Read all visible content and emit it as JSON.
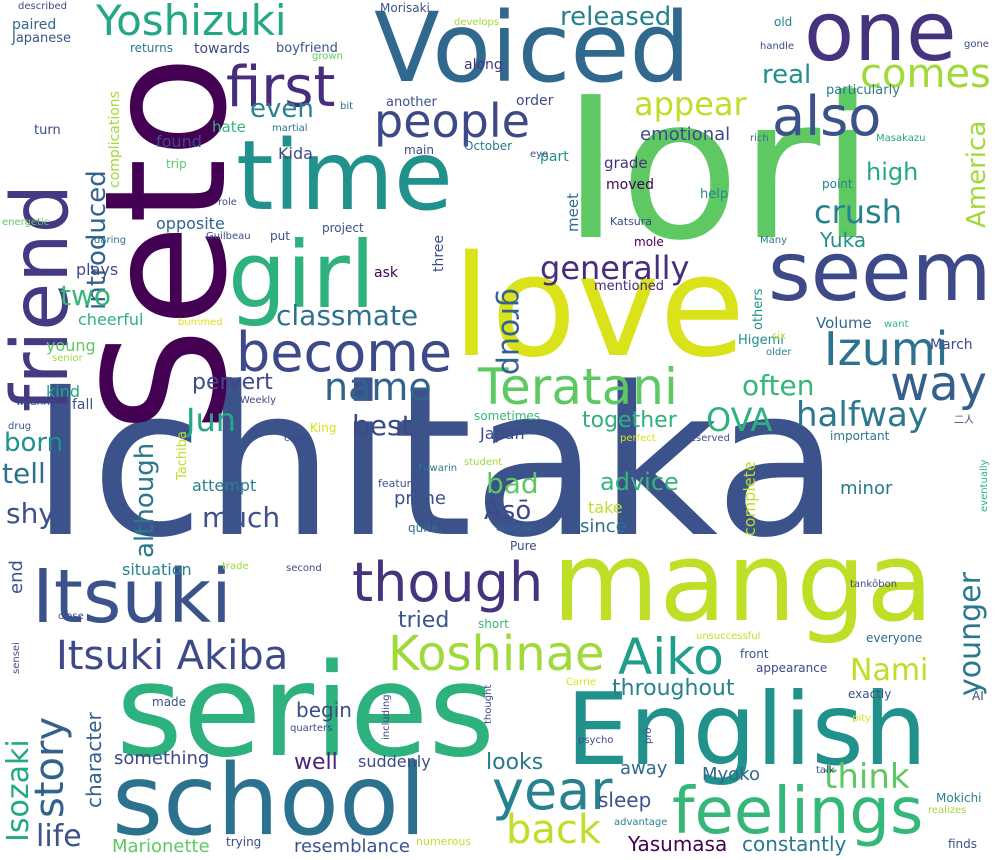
{
  "words": [
    {
      "text": "Ichitaka",
      "color": "#3b528b"
    },
    {
      "text": "Iori",
      "color": "#5ec962"
    },
    {
      "text": "Seto",
      "color": "#440154"
    },
    {
      "text": "love",
      "color": "#dae319"
    },
    {
      "text": "series",
      "color": "#2db27d"
    },
    {
      "text": "manga",
      "color": "#bddf26"
    },
    {
      "text": "school",
      "color": "#2c728e"
    },
    {
      "text": "English",
      "color": "#21918c"
    },
    {
      "text": "Voiced",
      "color": "#31688e"
    },
    {
      "text": "time",
      "color": "#21918c"
    },
    {
      "text": "girl",
      "color": "#2db27d"
    },
    {
      "text": "friend",
      "color": "#443983"
    },
    {
      "text": "seem",
      "color": "#3e4989"
    },
    {
      "text": "one",
      "color": "#46337e"
    },
    {
      "text": "Itsuki",
      "color": "#3b528b"
    },
    {
      "text": "feelings",
      "color": "#35b779"
    },
    {
      "text": "Teratani",
      "color": "#5ec962"
    },
    {
      "text": "though",
      "color": "#46337e"
    },
    {
      "text": "become",
      "color": "#3e4989"
    },
    {
      "text": "Koshinae",
      "color": "#a0da39"
    },
    {
      "text": "Aiko",
      "color": "#1f9e89"
    },
    {
      "text": "Itsuki Akiba",
      "color": "#3e4989"
    },
    {
      "text": "year",
      "color": "#26828e"
    },
    {
      "text": "back",
      "color": "#bddf26"
    },
    {
      "text": "first",
      "color": "#472d7b"
    },
    {
      "text": "also",
      "color": "#3b528b"
    },
    {
      "text": "people",
      "color": "#3e4989"
    },
    {
      "text": "way",
      "color": "#355f8d"
    },
    {
      "text": "Izumi",
      "color": "#2c728e"
    },
    {
      "text": "Yoshizuki",
      "color": "#22a884"
    },
    {
      "text": "comes",
      "color": "#a0da39"
    },
    {
      "text": "appear",
      "color": "#bddf26"
    },
    {
      "text": "name",
      "color": "#33638d"
    },
    {
      "text": "story",
      "color": "#33638d"
    },
    {
      "text": "think",
      "color": "#5ec962"
    },
    {
      "text": "halfway",
      "color": "#2a788e"
    },
    {
      "text": "generally",
      "color": "#472d7b"
    },
    {
      "text": "classmate",
      "color": "#2c728e"
    },
    {
      "text": "group",
      "color": "#33638d"
    },
    {
      "text": "introduced",
      "color": "#33638d"
    },
    {
      "text": "crush",
      "color": "#26828e"
    },
    {
      "text": "released",
      "color": "#26828e"
    },
    {
      "text": "even",
      "color": "#26828e"
    },
    {
      "text": "real",
      "color": "#21918c"
    },
    {
      "text": "Jun",
      "color": "#22a884"
    },
    {
      "text": "OVA",
      "color": "#2db27d"
    },
    {
      "text": "often",
      "color": "#35b779"
    },
    {
      "text": "best",
      "color": "#3e4989"
    },
    {
      "text": "much",
      "color": "#3b528b"
    },
    {
      "text": "Nami",
      "color": "#bddf26"
    },
    {
      "text": "younger",
      "color": "#2a788e"
    },
    {
      "text": "America",
      "color": "#a0da39"
    },
    {
      "text": "two",
      "color": "#35b779"
    },
    {
      "text": "tell",
      "color": "#2c728e"
    },
    {
      "text": "shy",
      "color": "#3b528b"
    },
    {
      "text": "born",
      "color": "#21918c"
    },
    {
      "text": "although",
      "color": "#2a788e"
    },
    {
      "text": "Isozaki",
      "color": "#22a884"
    },
    {
      "text": "life",
      "color": "#3b528b"
    },
    {
      "text": "bad",
      "color": "#5ec962"
    },
    {
      "text": "Asō",
      "color": "#3e4989"
    },
    {
      "text": "advice",
      "color": "#35b779"
    },
    {
      "text": "pervert",
      "color": "#3e4989"
    },
    {
      "text": "together",
      "color": "#2db27d"
    },
    {
      "text": "high",
      "color": "#22a884"
    },
    {
      "text": "Yuka",
      "color": "#21918c"
    },
    {
      "text": "emotional",
      "color": "#3e4989"
    },
    {
      "text": "throughout",
      "color": "#26828e"
    },
    {
      "text": "tried",
      "color": "#3b528b"
    },
    {
      "text": "sleep",
      "color": "#3b528b"
    },
    {
      "text": "Yasumasa",
      "color": "#440154"
    },
    {
      "text": "constantly",
      "color": "#2a788e"
    },
    {
      "text": "resemblance",
      "color": "#3b528b"
    },
    {
      "text": "Marionette",
      "color": "#5ec962"
    },
    {
      "text": "character",
      "color": "#355f8d"
    },
    {
      "text": "end",
      "color": "#3b528b"
    },
    {
      "text": "something",
      "color": "#3e4989"
    },
    {
      "text": "well",
      "color": "#482576"
    },
    {
      "text": "looks",
      "color": "#2a788e"
    },
    {
      "text": "begin",
      "color": "#3e4989"
    },
    {
      "text": "suddenly",
      "color": "#3e4989"
    },
    {
      "text": "away",
      "color": "#31688e"
    },
    {
      "text": "Myoko",
      "color": "#31688e"
    },
    {
      "text": "situation",
      "color": "#26828e"
    },
    {
      "text": "attempt",
      "color": "#26828e"
    },
    {
      "text": "prone",
      "color": "#3b528b"
    },
    {
      "text": "take",
      "color": "#bddf26"
    },
    {
      "text": "since",
      "color": "#2c728e"
    },
    {
      "text": "complete",
      "color": "#bddf26"
    },
    {
      "text": "minor",
      "color": "#2a788e"
    },
    {
      "text": "Japan",
      "color": "#3e4989"
    },
    {
      "text": "Volume",
      "color": "#31688e"
    },
    {
      "text": "Higemi",
      "color": "#21918c"
    },
    {
      "text": "others",
      "color": "#21918c"
    },
    {
      "text": "March",
      "color": "#3e4989"
    },
    {
      "text": "plays",
      "color": "#3e4989"
    },
    {
      "text": "cheerful",
      "color": "#2db27d"
    },
    {
      "text": "young",
      "color": "#5ec962"
    },
    {
      "text": "kind",
      "color": "#22a884"
    },
    {
      "text": "fall",
      "color": "#3b528b"
    },
    {
      "text": "opposite",
      "color": "#33638d"
    },
    {
      "text": "Kida",
      "color": "#3e4989"
    },
    {
      "text": "hate",
      "color": "#35b779"
    },
    {
      "text": "found",
      "color": "#3e4989"
    },
    {
      "text": "complications",
      "color": "#a0da39"
    },
    {
      "text": "paired",
      "color": "#31688e"
    },
    {
      "text": "Japanese",
      "color": "#3b528b"
    },
    {
      "text": "turn",
      "color": "#3e4989"
    },
    {
      "text": "mentioned",
      "color": "#482576"
    },
    {
      "text": "ask",
      "color": "#440154"
    },
    {
      "text": "three",
      "color": "#3b528b"
    },
    {
      "text": "meet",
      "color": "#2c728e"
    },
    {
      "text": "moved",
      "color": "#440154"
    },
    {
      "text": "grade",
      "color": "#46337e"
    },
    {
      "text": "part",
      "color": "#21918c"
    },
    {
      "text": "order",
      "color": "#3e4989"
    },
    {
      "text": "along",
      "color": "#46337e"
    },
    {
      "text": "towards",
      "color": "#3e4989"
    },
    {
      "text": "boyfriend",
      "color": "#3b528b"
    },
    {
      "text": "another",
      "color": "#3b528b"
    },
    {
      "text": "main",
      "color": "#3e4989"
    },
    {
      "text": "October",
      "color": "#2a788e"
    },
    {
      "text": "Morisaki",
      "color": "#3b528b"
    },
    {
      "text": "particularly",
      "color": "#2a788e"
    },
    {
      "text": "old",
      "color": "#26828e"
    },
    {
      "text": "help",
      "color": "#26828e"
    },
    {
      "text": "point",
      "color": "#26828e"
    },
    {
      "text": "mole",
      "color": "#440154"
    },
    {
      "text": "Katsura",
      "color": "#3e4989"
    },
    {
      "text": "sometimes",
      "color": "#35b779"
    },
    {
      "text": "important",
      "color": "#2a788e"
    },
    {
      "text": "featuring",
      "color": "#3b528b"
    },
    {
      "text": "quite",
      "color": "#2c728e"
    },
    {
      "text": "Pure",
      "color": "#3e4989"
    },
    {
      "text": "short",
      "color": "#35b779"
    },
    {
      "text": "front",
      "color": "#3b528b"
    },
    {
      "text": "appearance",
      "color": "#3e4989"
    },
    {
      "text": "exactly",
      "color": "#3b528b"
    },
    {
      "text": "everyone",
      "color": "#31688e"
    },
    {
      "text": "Mokichi",
      "color": "#26828e"
    },
    {
      "text": "finds",
      "color": "#3b528b"
    },
    {
      "text": "trying",
      "color": "#3e4989"
    },
    {
      "text": "numerous",
      "color": "#bddf26"
    },
    {
      "text": "advantage",
      "color": "#26828e"
    },
    {
      "text": "realizes",
      "color": "#a0da39"
    },
    {
      "text": "project",
      "color": "#3b528b"
    },
    {
      "text": "put",
      "color": "#3e4989"
    },
    {
      "text": "role",
      "color": "#3e4989"
    },
    {
      "text": "daring",
      "color": "#2c728e"
    },
    {
      "text": "energetic",
      "color": "#5ec962"
    },
    {
      "text": "trip",
      "color": "#5ec962"
    },
    {
      "text": "martial",
      "color": "#2c728e"
    },
    {
      "text": "bit",
      "color": "#2c728e"
    },
    {
      "text": "grown",
      "color": "#5ec962"
    },
    {
      "text": "returns",
      "color": "#2a788e"
    },
    {
      "text": "described",
      "color": "#3e4989"
    },
    {
      "text": "develops",
      "color": "#a0da39"
    },
    {
      "text": "handle",
      "color": "#3e4989"
    },
    {
      "text": "gone",
      "color": "#3e4989"
    },
    {
      "text": "rich",
      "color": "#2c728e"
    },
    {
      "text": "Masakazu",
      "color": "#22a884"
    },
    {
      "text": "eye",
      "color": "#3b528b"
    },
    {
      "text": "Guilbeau",
      "color": "#3e4989"
    },
    {
      "text": "Many",
      "color": "#2a788e"
    },
    {
      "text": "want",
      "color": "#35b779"
    },
    {
      "text": "six",
      "color": "#bddf26"
    },
    {
      "text": "older",
      "color": "#26828e"
    },
    {
      "text": "bummed",
      "color": "#dae319"
    },
    {
      "text": "senior",
      "color": "#a0da39"
    },
    {
      "text": "wearing",
      "color": "#3e4989"
    },
    {
      "text": "Weekly",
      "color": "#3e4989"
    },
    {
      "text": "Tachiba",
      "color": "#bddf26"
    },
    {
      "text": "drug",
      "color": "#3b528b"
    },
    {
      "text": "King",
      "color": "#dae319"
    },
    {
      "text": "case",
      "color": "#3e4989"
    },
    {
      "text": "perfect",
      "color": "#dae319"
    },
    {
      "text": "reserved",
      "color": "#3b528b"
    },
    {
      "text": "二人",
      "color": "#3e4989"
    },
    {
      "text": "Fuwarin",
      "color": "#2a788e"
    },
    {
      "text": "student",
      "color": "#a0da39"
    },
    {
      "text": "outlook",
      "color": "#31688e"
    },
    {
      "text": "eventually",
      "color": "#2db27d"
    },
    {
      "text": "good",
      "color": "#3b528b"
    },
    {
      "text": "trade",
      "color": "#a0da39"
    },
    {
      "text": "second",
      "color": "#3e4989"
    },
    {
      "text": "tankōbon",
      "color": "#3e4989"
    },
    {
      "text": "close",
      "color": "#3e4989"
    },
    {
      "text": "sensei",
      "color": "#3e4989"
    },
    {
      "text": "unsuccessful",
      "color": "#bddf26"
    },
    {
      "text": "Carrie",
      "color": "#dae319"
    },
    {
      "text": "including",
      "color": "#3e4989"
    },
    {
      "text": "thought",
      "color": "#3e4989"
    },
    {
      "text": "made",
      "color": "#3b528b"
    },
    {
      "text": "quarters",
      "color": "#3e4989"
    },
    {
      "text": "pro",
      "color": "#3e4989"
    },
    {
      "text": "psycho",
      "color": "#3e4989"
    },
    {
      "text": "pity",
      "color": "#dae319"
    },
    {
      "text": "AI",
      "color": "#3e4989"
    },
    {
      "text": "talk",
      "color": "#3e4989"
    }
  ]
}
